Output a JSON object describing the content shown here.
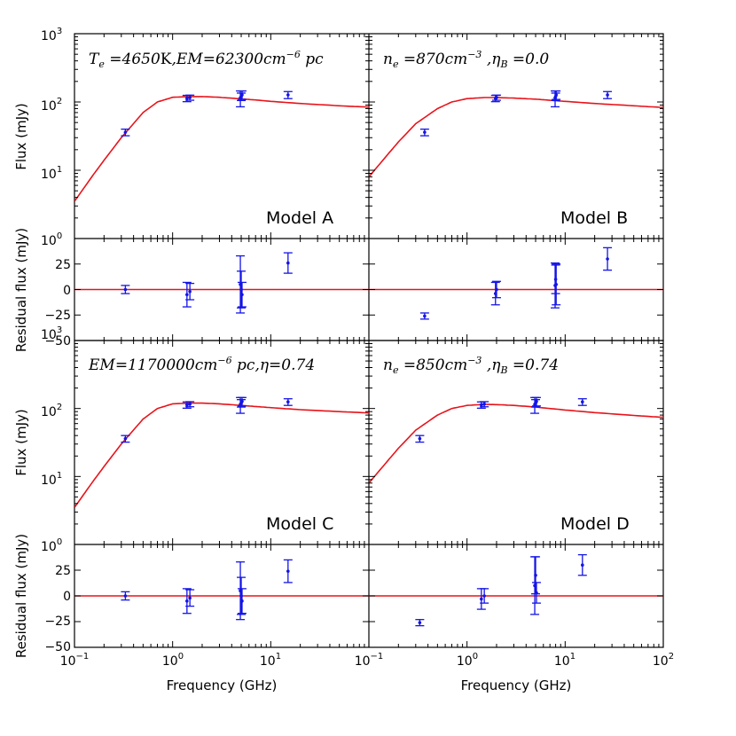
{
  "chart_data": [
    {
      "type": "line",
      "panel": "A",
      "model_label": "Model A",
      "annotation": "T_e =4650K,EM=62300cm^-6 pc",
      "ylabel": "Flux (mJy)",
      "yscale": "log",
      "xscale": "log",
      "xlim": [
        0.1,
        100
      ],
      "ylim": [
        1,
        1000
      ],
      "yticks": [
        "10^0",
        "10^1",
        "10^2",
        "10^3"
      ],
      "model_curve": {
        "x": [
          0.1,
          0.15,
          0.2,
          0.3,
          0.5,
          0.7,
          1.0,
          1.5,
          2,
          3,
          5,
          7,
          10,
          20,
          50,
          100
        ],
        "y": [
          3.5,
          8,
          14,
          30,
          70,
          100,
          117,
          120,
          120,
          117,
          111,
          107,
          102,
          95,
          88,
          84
        ]
      },
      "observations": [
        {
          "x": 0.33,
          "y": 36,
          "err": 4
        },
        {
          "x": 1.4,
          "y": 113,
          "err": 12
        },
        {
          "x": 1.5,
          "y": 116,
          "err": 10
        },
        {
          "x": 4.9,
          "y": 115,
          "err": 30
        },
        {
          "x": 5.0,
          "y": 120,
          "err": 15
        },
        {
          "x": 5.1,
          "y": 127,
          "err": 18
        },
        {
          "x": 15.0,
          "y": 127,
          "err": 15
        }
      ]
    },
    {
      "type": "line",
      "panel": "B",
      "model_label": "Model B",
      "annotation": "n_e =870cm^-3 ,η_B =0.0",
      "yscale": "log",
      "xscale": "log",
      "xlim": [
        0.1,
        100
      ],
      "ylim": [
        1,
        1000
      ],
      "model_curve": {
        "x": [
          0.1,
          0.15,
          0.2,
          0.3,
          0.5,
          0.7,
          1.0,
          1.5,
          2,
          3,
          5,
          7,
          10,
          20,
          50,
          100
        ],
        "y": [
          8,
          16,
          26,
          48,
          80,
          100,
          112,
          116,
          116,
          114,
          110,
          106,
          102,
          95,
          88,
          83
        ]
      },
      "observations": [
        {
          "x": 0.37,
          "y": 36,
          "err": 4
        },
        {
          "x": 1.95,
          "y": 113,
          "err": 12
        },
        {
          "x": 2.0,
          "y": 116,
          "err": 10
        },
        {
          "x": 7.9,
          "y": 115,
          "err": 30
        },
        {
          "x": 8.0,
          "y": 120,
          "err": 15
        },
        {
          "x": 8.1,
          "y": 127,
          "err": 18
        },
        {
          "x": 27.0,
          "y": 127,
          "err": 15
        }
      ]
    },
    {
      "type": "scatter",
      "panel": "A-residual",
      "ylabel": "Residual flux (mJy)",
      "xscale": "log",
      "xlim": [
        0.1,
        100
      ],
      "ylim": [
        -50,
        50
      ],
      "yticks": [
        "−25",
        "0",
        "25"
      ],
      "zero_line": 0,
      "observations": [
        {
          "x": 0.33,
          "y": 0,
          "err": 4
        },
        {
          "x": 1.4,
          "y": -5,
          "err": 12
        },
        {
          "x": 1.5,
          "y": -2,
          "err": 8
        },
        {
          "x": 4.9,
          "y": 5,
          "err": 28
        },
        {
          "x": 5.0,
          "y": 0,
          "err": 18
        },
        {
          "x": 5.1,
          "y": -5,
          "err": 12
        },
        {
          "x": 15.0,
          "y": 26,
          "err": 10
        }
      ]
    },
    {
      "type": "scatter",
      "panel": "B-residual",
      "xscale": "log",
      "xlim": [
        0.1,
        100
      ],
      "ylim": [
        -50,
        50
      ],
      "zero_line": 0,
      "observations": [
        {
          "x": 0.37,
          "y": -26,
          "err": 3
        },
        {
          "x": 1.95,
          "y": -4,
          "err": 11
        },
        {
          "x": 2.0,
          "y": 0,
          "err": 8
        },
        {
          "x": 7.9,
          "y": 4,
          "err": 22
        },
        {
          "x": 8.0,
          "y": 10,
          "err": 14
        },
        {
          "x": 8.1,
          "y": 5,
          "err": 20
        },
        {
          "x": 27.0,
          "y": 30,
          "err": 11
        }
      ]
    },
    {
      "type": "line",
      "panel": "C",
      "model_label": "Model C",
      "annotation": "EM=1170000cm^-6 pc,η=0.74",
      "ylabel": "Flux (mJy)",
      "yscale": "log",
      "xscale": "log",
      "xlim": [
        0.1,
        100
      ],
      "ylim": [
        1,
        1000
      ],
      "yticks": [
        "10^0",
        "10^1",
        "10^2"
      ],
      "top_tick_overlap": "−50 / 10^3",
      "model_curve": {
        "x": [
          0.1,
          0.15,
          0.2,
          0.3,
          0.5,
          0.7,
          1.0,
          1.5,
          2,
          3,
          5,
          7,
          10,
          20,
          50,
          100
        ],
        "y": [
          3.5,
          8,
          14,
          30,
          70,
          100,
          117,
          120,
          120,
          117,
          111,
          107,
          103,
          96,
          90,
          86
        ]
      },
      "observations": [
        {
          "x": 0.33,
          "y": 36,
          "err": 4
        },
        {
          "x": 1.4,
          "y": 113,
          "err": 12
        },
        {
          "x": 1.5,
          "y": 116,
          "err": 10
        },
        {
          "x": 4.9,
          "y": 115,
          "err": 30
        },
        {
          "x": 5.0,
          "y": 120,
          "err": 15
        },
        {
          "x": 5.1,
          "y": 127,
          "err": 18
        },
        {
          "x": 15.0,
          "y": 125,
          "err": 14
        }
      ]
    },
    {
      "type": "line",
      "panel": "D",
      "model_label": "Model D",
      "annotation": "n_e =850cm^-3 ,η_B =0.74",
      "yscale": "log",
      "xscale": "log",
      "xlim": [
        0.1,
        100
      ],
      "ylim": [
        1,
        1000
      ],
      "model_curve": {
        "x": [
          0.1,
          0.15,
          0.2,
          0.3,
          0.5,
          0.7,
          1.0,
          1.5,
          2,
          3,
          5,
          7,
          10,
          20,
          50,
          100
        ],
        "y": [
          8,
          16,
          26,
          48,
          80,
          100,
          111,
          115,
          114,
          111,
          105,
          100,
          95,
          87,
          79,
          74
        ]
      },
      "observations": [
        {
          "x": 0.33,
          "y": 36,
          "err": 4
        },
        {
          "x": 1.4,
          "y": 113,
          "err": 12
        },
        {
          "x": 1.5,
          "y": 116,
          "err": 10
        },
        {
          "x": 4.9,
          "y": 115,
          "err": 30
        },
        {
          "x": 5.0,
          "y": 120,
          "err": 15
        },
        {
          "x": 5.1,
          "y": 127,
          "err": 18
        },
        {
          "x": 15.0,
          "y": 125,
          "err": 14
        }
      ]
    },
    {
      "type": "scatter",
      "panel": "C-residual",
      "ylabel": "Residual flux (mJy)",
      "xlabel": "Frequency (GHz)",
      "xscale": "log",
      "xlim": [
        0.1,
        100
      ],
      "ylim": [
        -50,
        50
      ],
      "yticks": [
        "−50",
        "−25",
        "0",
        "25"
      ],
      "xticks": [
        "10^-1",
        "10^0",
        "10^1",
        "10^-1"
      ],
      "zero_line": 0,
      "observations": [
        {
          "x": 0.33,
          "y": 0,
          "err": 4
        },
        {
          "x": 1.4,
          "y": -5,
          "err": 12
        },
        {
          "x": 1.5,
          "y": -2,
          "err": 8
        },
        {
          "x": 4.9,
          "y": 5,
          "err": 28
        },
        {
          "x": 5.0,
          "y": 0,
          "err": 18
        },
        {
          "x": 5.1,
          "y": -5,
          "err": 12
        },
        {
          "x": 15.0,
          "y": 24,
          "err": 11
        }
      ]
    },
    {
      "type": "scatter",
      "panel": "D-residual",
      "xlabel": "Frequency (GHz)",
      "xscale": "log",
      "xlim": [
        0.1,
        100
      ],
      "ylim": [
        -50,
        50
      ],
      "xticks": [
        "10^0",
        "10^1",
        "10^2"
      ],
      "zero_line": 0,
      "observations": [
        {
          "x": 0.33,
          "y": -26,
          "err": 3
        },
        {
          "x": 1.4,
          "y": -3,
          "err": 10
        },
        {
          "x": 1.5,
          "y": 0,
          "err": 7
        },
        {
          "x": 4.9,
          "y": 10,
          "err": 28
        },
        {
          "x": 5.0,
          "y": 20,
          "err": 18
        },
        {
          "x": 5.1,
          "y": 3,
          "err": 10
        },
        {
          "x": 15.0,
          "y": 30,
          "err": 10
        }
      ]
    }
  ],
  "labels": {
    "flux_ylabel": "Flux (mJy)",
    "residual_ylabel": "Residual flux (mJy)",
    "xlabel": "Frequency (GHz)",
    "model_a": "Model A",
    "model_b": "Model B",
    "model_c": "Model C",
    "model_d": "Model D"
  },
  "colors": {
    "model_curve": "#e8131a",
    "data": "#1414e6",
    "axes": "#000000"
  }
}
